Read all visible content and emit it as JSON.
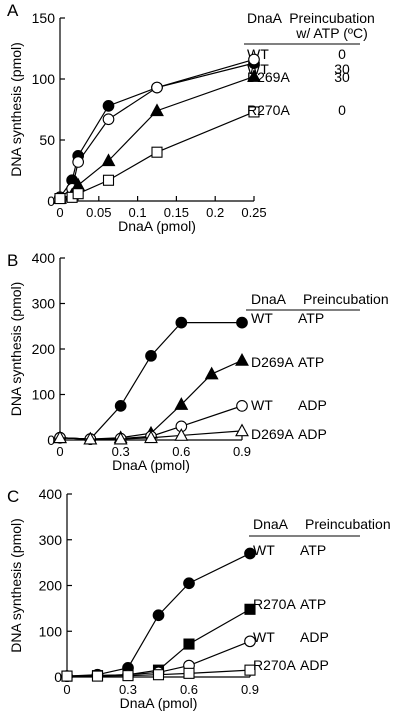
{
  "chart_data": [
    {
      "panel_label": "A",
      "type": "line",
      "xlabel": "DnaA (pmol)",
      "ylabel": "DNA synthesis (pmol)",
      "xlim": [
        0,
        0.25
      ],
      "ylim": [
        0,
        150
      ],
      "xticks": [
        0,
        0.05,
        0.1,
        0.15,
        0.2,
        0.25
      ],
      "xtick_labels": [
        "0",
        "0.05",
        "0.1",
        "0.15",
        "0.2",
        "0.25"
      ],
      "yticks": [
        0,
        50,
        100,
        150
      ],
      "ytick_labels": [
        "0",
        "50",
        "100",
        "150"
      ],
      "legend_header": [
        "DnaA",
        "Preincubation",
        "w/ ATP (ºC)"
      ],
      "series": [
        {
          "label": "WT",
          "condition": "0",
          "marker": "filled-circle",
          "x": [
            0,
            0.0156,
            0.0234,
            0.0625,
            0.125,
            0.25
          ],
          "y": [
            3,
            17,
            37,
            78,
            93,
            113
          ]
        },
        {
          "label": "WT",
          "condition": "30",
          "marker": "open-circle",
          "x": [
            0,
            0.0156,
            0.0234,
            0.0625,
            0.125,
            0.25
          ],
          "y": [
            3,
            10,
            32,
            67,
            93,
            116
          ]
        },
        {
          "label": "D269A",
          "condition": "30",
          "marker": "filled-triangle",
          "x": [
            0,
            0.0156,
            0.0234,
            0.0625,
            0.125,
            0.25
          ],
          "y": [
            2,
            5,
            13,
            33,
            74,
            102
          ]
        },
        {
          "label": "R270A",
          "condition": "0",
          "marker": "open-square",
          "x": [
            0,
            0.0156,
            0.0234,
            0.0625,
            0.125,
            0.25
          ],
          "y": [
            2,
            3,
            6,
            17,
            40,
            73
          ]
        }
      ]
    },
    {
      "panel_label": "B",
      "type": "line",
      "xlabel": "DnaA (pmol)",
      "ylabel": "DNA synthesis (pmol)",
      "xlim": [
        0,
        0.9
      ],
      "ylim": [
        0,
        400
      ],
      "xticks": [
        0,
        0.3,
        0.6,
        0.9
      ],
      "xtick_labels": [
        "0",
        "0.3",
        "0.6",
        "0.9"
      ],
      "yticks": [
        0,
        100,
        200,
        300,
        400
      ],
      "ytick_labels": [
        "0",
        "100",
        "200",
        "300",
        "400"
      ],
      "legend_header": [
        "DnaA",
        "Preincubation"
      ],
      "series": [
        {
          "label": "WT",
          "condition": "ATP",
          "marker": "filled-circle",
          "x": [
            0,
            0.15,
            0.3,
            0.45,
            0.6,
            0.9
          ],
          "y": [
            5,
            2,
            75,
            185,
            258,
            258
          ]
        },
        {
          "label": "D269A",
          "condition": "ATP",
          "marker": "filled-triangle",
          "x": [
            0,
            0.15,
            0.3,
            0.45,
            0.6,
            0.75,
            0.9
          ],
          "y": [
            5,
            2,
            5,
            15,
            78,
            145,
            175
          ]
        },
        {
          "label": "WT",
          "condition": "ADP",
          "marker": "open-circle",
          "x": [
            0,
            0.15,
            0.3,
            0.45,
            0.6,
            0.9
          ],
          "y": [
            5,
            2,
            3,
            8,
            30,
            75
          ]
        },
        {
          "label": "D269A",
          "condition": "ADP",
          "marker": "open-triangle",
          "x": [
            0,
            0.15,
            0.3,
            0.45,
            0.6,
            0.9
          ],
          "y": [
            5,
            2,
            2,
            5,
            10,
            20
          ]
        }
      ]
    },
    {
      "panel_label": "C",
      "type": "line",
      "xlabel": "DnaA (pmol)",
      "ylabel": "DNA synthesis (pmol)",
      "xlim": [
        0,
        0.9
      ],
      "ylim": [
        0,
        400
      ],
      "xticks": [
        0,
        0.3,
        0.6,
        0.9
      ],
      "xtick_labels": [
        "0",
        "0.3",
        "0.6",
        "0.9"
      ],
      "yticks": [
        0,
        100,
        200,
        300,
        400
      ],
      "ytick_labels": [
        "0",
        "100",
        "200",
        "300",
        "400"
      ],
      "legend_header": [
        "DnaA",
        "Preincubation"
      ],
      "series": [
        {
          "label": "WT",
          "condition": "ATP",
          "marker": "filled-circle",
          "x": [
            0,
            0.15,
            0.3,
            0.45,
            0.6,
            0.9
          ],
          "y": [
            2,
            5,
            20,
            135,
            205,
            270
          ]
        },
        {
          "label": "R270A",
          "condition": "ATP",
          "marker": "filled-square",
          "x": [
            0,
            0.15,
            0.3,
            0.45,
            0.6,
            0.9
          ],
          "y": [
            2,
            3,
            5,
            15,
            72,
            148
          ]
        },
        {
          "label": "WT",
          "condition": "ADP",
          "marker": "open-circle",
          "x": [
            0,
            0.15,
            0.3,
            0.45,
            0.6,
            0.9
          ],
          "y": [
            2,
            3,
            5,
            10,
            25,
            78
          ]
        },
        {
          "label": "R270A",
          "condition": "ADP",
          "marker": "open-square",
          "x": [
            0,
            0.15,
            0.3,
            0.45,
            0.6,
            0.9
          ],
          "y": [
            2,
            2,
            3,
            5,
            8,
            15
          ]
        }
      ]
    }
  ]
}
